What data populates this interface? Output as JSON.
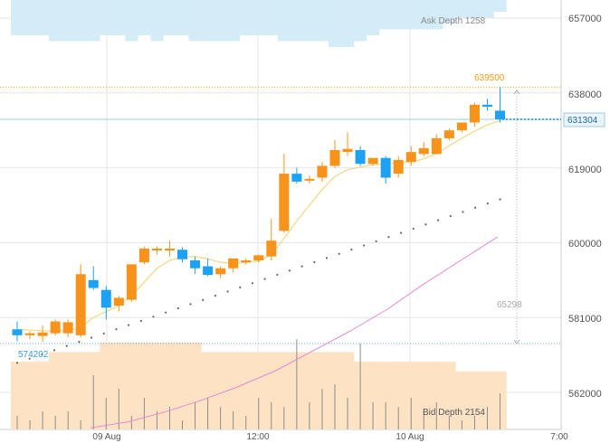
{
  "colors": {
    "up": "#f7931a",
    "down": "#1da1f2",
    "ask_fill": "#d4ebf8",
    "bid_fill": "#fde3c4",
    "ma_line": "#f3d98a",
    "trend_line": "#e389d6",
    "grid": "#e6e6e6",
    "last_price": "#1e88c8",
    "high_label": "#f39c12",
    "low_label": "#3a9bd5"
  },
  "y_axis": {
    "ticks": [
      "657000",
      "638000",
      "619000",
      "600000",
      "581000",
      "562000"
    ],
    "tick_values": [
      657000,
      638000,
      619000,
      600000,
      581000,
      562000
    ]
  },
  "x_axis": {
    "ticks": [
      "09 Aug",
      "12:00",
      "10 Aug",
      "7:00"
    ]
  },
  "annotations": {
    "ask_depth": "Ask Depth 1258",
    "bid_depth": "Bid Depth 2154",
    "high_price": "639500",
    "low_price": "574202",
    "last_price": "631304",
    "trend_end": "65298"
  },
  "chart_data": {
    "type": "candlestick",
    "title": "",
    "ylim": [
      553000,
      664000
    ],
    "last_price": 631304,
    "high": 639500,
    "low": 574202,
    "candles": [
      {
        "o": 578000,
        "h": 580000,
        "l": 575000,
        "c": 576500
      },
      {
        "o": 576500,
        "h": 577500,
        "l": 575500,
        "c": 577000
      },
      {
        "o": 576300,
        "h": 579000,
        "l": 574800,
        "c": 577200
      },
      {
        "o": 577000,
        "h": 580500,
        "l": 576500,
        "c": 580000
      },
      {
        "o": 577000,
        "h": 580500,
        "l": 576000,
        "c": 579800
      },
      {
        "o": 576500,
        "h": 594500,
        "l": 576000,
        "c": 592000
      },
      {
        "o": 590500,
        "h": 594000,
        "l": 588000,
        "c": 588500
      },
      {
        "o": 588000,
        "h": 589000,
        "l": 580500,
        "c": 583500
      },
      {
        "o": 584000,
        "h": 586500,
        "l": 582500,
        "c": 586000
      },
      {
        "o": 585500,
        "h": 594500,
        "l": 585000,
        "c": 594500
      },
      {
        "o": 595000,
        "h": 599000,
        "l": 594500,
        "c": 598500
      },
      {
        "o": 598000,
        "h": 599000,
        "l": 597000,
        "c": 598500
      },
      {
        "o": 598000,
        "h": 600500,
        "l": 596500,
        "c": 598500
      },
      {
        "o": 598200,
        "h": 598800,
        "l": 595000,
        "c": 595800
      },
      {
        "o": 595500,
        "h": 596500,
        "l": 592000,
        "c": 593500
      },
      {
        "o": 594000,
        "h": 596000,
        "l": 591500,
        "c": 591800
      },
      {
        "o": 592000,
        "h": 594000,
        "l": 591000,
        "c": 593500
      },
      {
        "o": 593500,
        "h": 596000,
        "l": 592500,
        "c": 596000
      },
      {
        "o": 595000,
        "h": 596000,
        "l": 594500,
        "c": 595500
      },
      {
        "o": 595500,
        "h": 597000,
        "l": 595000,
        "c": 596800
      },
      {
        "o": 596500,
        "h": 606000,
        "l": 595500,
        "c": 600500
      },
      {
        "o": 603000,
        "h": 622500,
        "l": 602500,
        "c": 617500
      },
      {
        "o": 617500,
        "h": 619000,
        "l": 615000,
        "c": 615500
      },
      {
        "o": 616000,
        "h": 617000,
        "l": 615000,
        "c": 616200
      },
      {
        "o": 616500,
        "h": 620500,
        "l": 615500,
        "c": 619500
      },
      {
        "o": 619500,
        "h": 626000,
        "l": 619000,
        "c": 623500
      },
      {
        "o": 623000,
        "h": 628000,
        "l": 622000,
        "c": 623800
      },
      {
        "o": 623500,
        "h": 624500,
        "l": 619500,
        "c": 620000
      },
      {
        "o": 620000,
        "h": 621500,
        "l": 619500,
        "c": 621500
      },
      {
        "o": 621500,
        "h": 622000,
        "l": 615000,
        "c": 616500
      },
      {
        "o": 617500,
        "h": 622000,
        "l": 616500,
        "c": 621000
      },
      {
        "o": 620500,
        "h": 624500,
        "l": 619500,
        "c": 623000
      },
      {
        "o": 622500,
        "h": 625500,
        "l": 622000,
        "c": 624000
      },
      {
        "o": 622500,
        "h": 627500,
        "l": 622500,
        "c": 626500
      },
      {
        "o": 626500,
        "h": 629000,
        "l": 626000,
        "c": 628500
      },
      {
        "o": 628500,
        "h": 630500,
        "l": 628000,
        "c": 630500
      },
      {
        "o": 630500,
        "h": 635500,
        "l": 629500,
        "c": 635000
      },
      {
        "o": 635000,
        "h": 636500,
        "l": 633500,
        "c": 634500
      },
      {
        "o": 633500,
        "h": 639500,
        "l": 630500,
        "c": 631304
      }
    ],
    "moving_average": [
      578000,
      577800,
      577600,
      577600,
      577700,
      578500,
      581000,
      582500,
      584000,
      586500,
      590000,
      593500,
      595500,
      596300,
      596500,
      595900,
      595000,
      594800,
      595000,
      595300,
      597000,
      601000,
      605500,
      609500,
      613500,
      616800,
      618500,
      619200,
      619800,
      620000,
      620300,
      620500,
      621300,
      622600,
      624600,
      626500,
      628300,
      629900,
      631000
    ],
    "trend": {
      "from": {
        "index": 0,
        "value": 569500
      },
      "to": {
        "index": 38,
        "value": 611000
      },
      "dots": 40
    },
    "trend_line_values": [
      553000,
      554500,
      557000,
      560000,
      563500,
      567500,
      572500,
      577500,
      583000,
      589500,
      595500,
      601500
    ],
    "ask_depth_values": [
      6,
      6,
      6,
      7,
      7,
      7,
      7,
      6,
      6,
      7,
      6,
      7,
      6,
      6,
      7,
      7,
      7,
      7,
      6,
      6,
      6,
      7,
      7,
      7,
      7,
      8,
      8,
      7,
      6,
      5,
      5,
      5,
      5,
      5,
      4,
      3,
      3,
      3,
      2
    ],
    "bid_depth_values": [
      7,
      7,
      7,
      8,
      8,
      8,
      8,
      9,
      9,
      9,
      9,
      9,
      9,
      9,
      9,
      8,
      8,
      8,
      8,
      8,
      8,
      8,
      8,
      8,
      8,
      8,
      8,
      7,
      7,
      7,
      7,
      7,
      7,
      7,
      7,
      6,
      6,
      6,
      6
    ],
    "volume_values": [
      3,
      2,
      4,
      3,
      4,
      2,
      12,
      7,
      9,
      3,
      7,
      4,
      5,
      2,
      6,
      7,
      5,
      4,
      3,
      7,
      6,
      5,
      20,
      6,
      9,
      10,
      7,
      19,
      6,
      6,
      5,
      7,
      4,
      6,
      3,
      2,
      3,
      5,
      8
    ]
  }
}
